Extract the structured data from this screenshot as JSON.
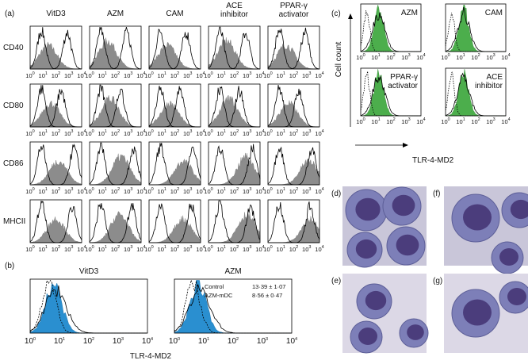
{
  "panel_a": {
    "label": "(a)",
    "columns": [
      [
        "VitD3"
      ],
      [
        "AZM"
      ],
      [
        "CAM"
      ],
      [
        "ACE",
        "inhibitor"
      ],
      [
        "PPAR-γ",
        "activator"
      ]
    ],
    "rows": [
      "CD40",
      "CD80",
      "CD86",
      "MHCII"
    ]
  },
  "axis_ticks": [
    {
      "base": "10",
      "exp": "0"
    },
    {
      "base": "10",
      "exp": "1"
    },
    {
      "base": "10",
      "exp": "2"
    },
    {
      "base": "10",
      "exp": "3"
    },
    {
      "base": "10",
      "exp": "4"
    }
  ],
  "panel_b": {
    "label": "(b)",
    "plots": [
      "VitD3",
      "AZM"
    ],
    "legend": [
      {
        "name": "Control",
        "value": "13·39 ± 1·07"
      },
      {
        "name": "AZM-mDC",
        "value": "8·56 ± 0·47"
      }
    ],
    "x_label": "TLR-4-MD2"
  },
  "panel_c": {
    "label": "(c)",
    "plots": [
      [
        "AZM"
      ],
      [
        "CAM"
      ],
      [
        "PPAR-γ",
        "activator"
      ],
      [
        "ACE",
        "inhibitor"
      ]
    ],
    "y_label": "Cell count",
    "x_label": "TLR-4-MD2"
  },
  "panel_images": [
    {
      "label": "(d)"
    },
    {
      "label": "(f)"
    },
    {
      "label": "(e)"
    },
    {
      "label": "(g)"
    }
  ]
}
